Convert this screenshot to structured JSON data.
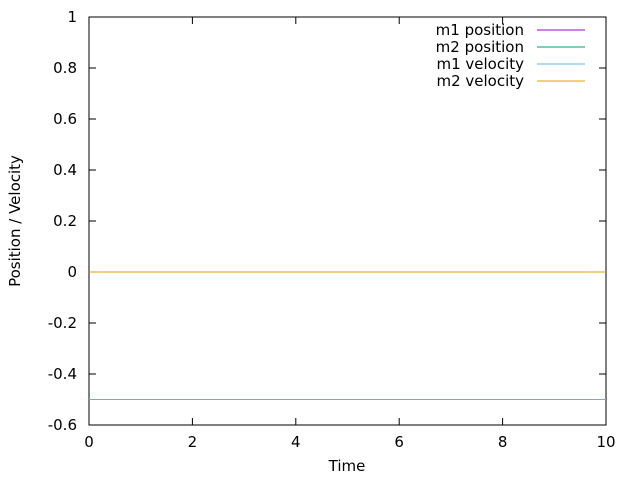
{
  "chart_data": {
    "type": "line",
    "xlabel": "Time",
    "ylabel": "Position / Velocity",
    "xlim": [
      0,
      10
    ],
    "ylim": [
      -0.6,
      1
    ],
    "xticks": [
      "0",
      "2",
      "4",
      "6",
      "8",
      "10"
    ],
    "yticks": [
      "1",
      "0.8",
      "0.6",
      "0.4",
      "0.2",
      "0",
      "-0.2",
      "-0.4",
      "-0.6"
    ],
    "grid": false,
    "legend_position": "top-right",
    "series": [
      {
        "name": "m1 position",
        "color": "#9400d3",
        "x": [
          0,
          10
        ],
        "y": [
          0,
          0
        ]
      },
      {
        "name": "m2 position",
        "color": "#009e73",
        "x": [
          0,
          10
        ],
        "y": [
          -0.5,
          -0.5
        ]
      },
      {
        "name": "m1 velocity",
        "color": "#56b4e9",
        "x": [
          0,
          10
        ],
        "y": [
          -0.5,
          -0.5
        ]
      },
      {
        "name": "m2 velocity",
        "color": "#e69f00",
        "x": [
          0,
          10
        ],
        "y": [
          0,
          0
        ]
      }
    ]
  }
}
